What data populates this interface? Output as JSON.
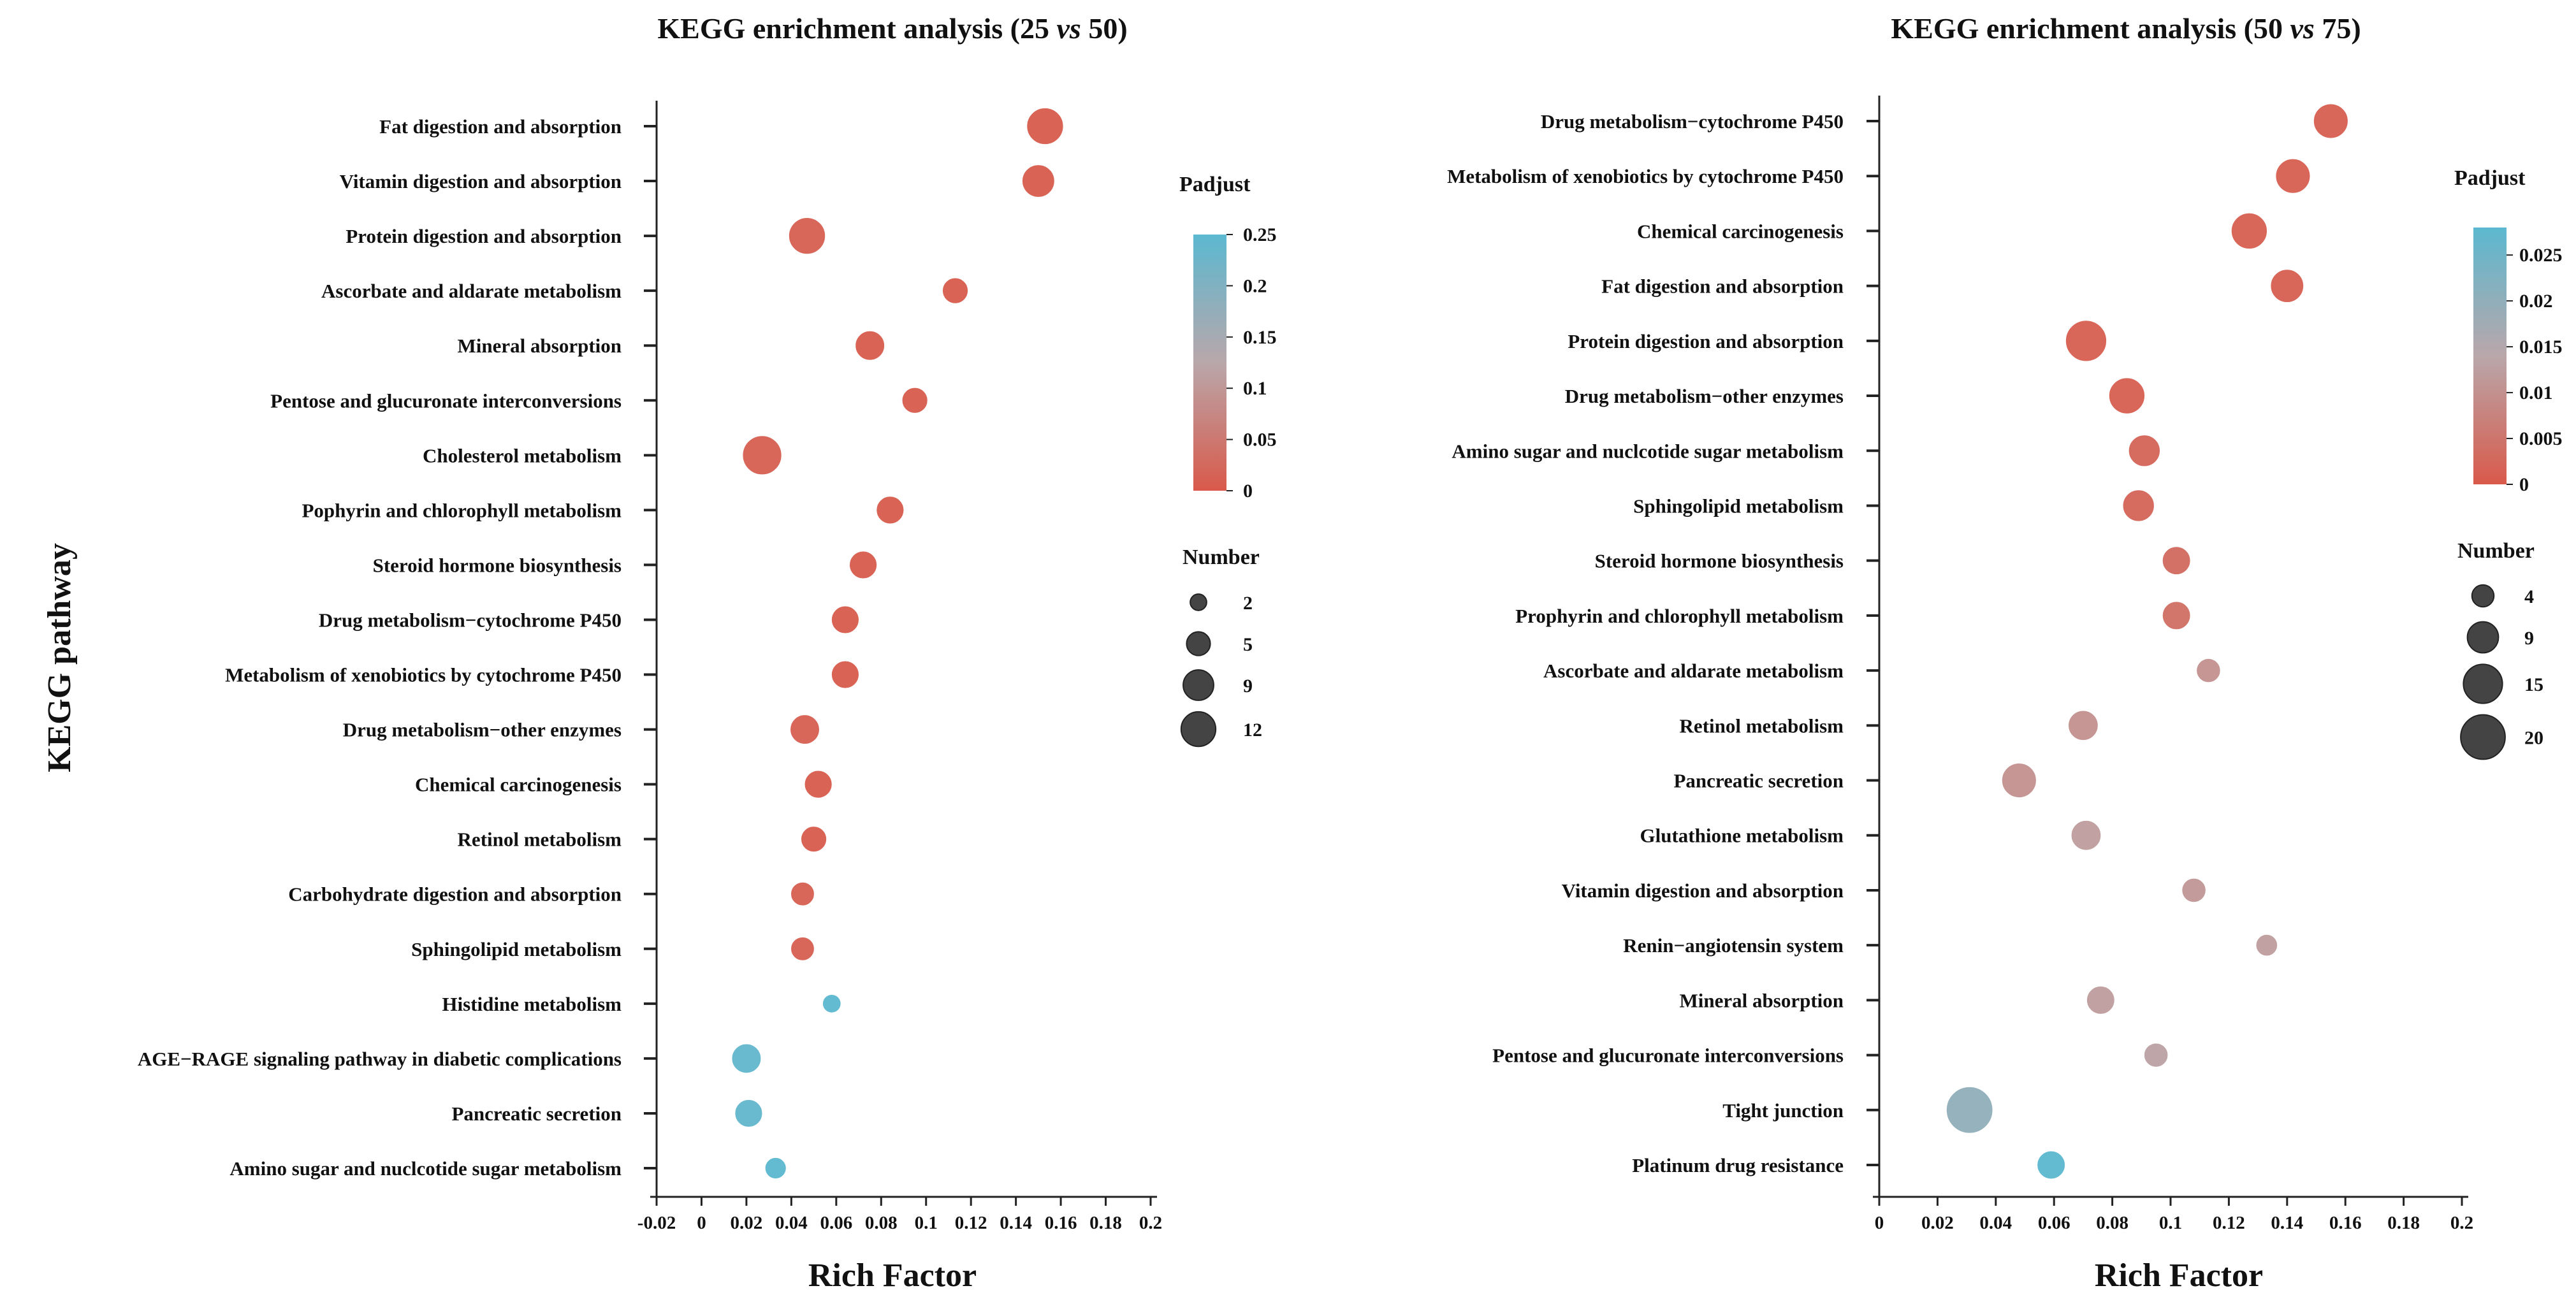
{
  "figure": {
    "ylabel_left": "KEGG pathway"
  },
  "chart_data": [
    {
      "type": "scatter",
      "title": "KEGG enrichment analysis (25 vs 50)",
      "title_parts": [
        "KEGG enrichment analysis (25 ",
        "vs",
        " 50)"
      ],
      "xlabel": "Rich Factor",
      "ylabel": "KEGG pathway",
      "xlim": [
        -0.02,
        0.2
      ],
      "x_ticks": [
        "-0.02",
        "0",
        "0.02",
        "0.04",
        "0.06",
        "0.08",
        "0.1",
        "0.12",
        "0.14",
        "0.16",
        "0.18",
        "0.2"
      ],
      "grid": false,
      "legend_placement": "right",
      "color_legend": {
        "title": "Padjust",
        "min": 0,
        "max": 0.25,
        "ticks": [
          "0.25",
          "0.2",
          "0.15",
          "0.1",
          "0.05",
          "0"
        ],
        "low_color": "#d9594a",
        "high_color": "#5bb8d0"
      },
      "size_legend": {
        "title": "Number",
        "values": [
          2,
          5,
          9,
          12
        ],
        "labels": [
          "2",
          "5",
          "9",
          "12"
        ]
      },
      "categories": [
        "Fat digestion and absorption",
        "Vitamin digestion and absorption",
        "Protein digestion and absorption",
        "Ascorbate and aldarate metabolism",
        "Mineral absorption",
        "Pentose and glucuronate interconversions",
        "Cholesterol metabolism",
        "Pophyrin and chlorophyll metabolism",
        "Steroid hormone biosynthesis",
        "Drug metabolism−cytochrome P450",
        "Metabolism of xenobiotics by cytochrome P450",
        "Drug metabolism−other enzymes",
        "Chemical carcinogenesis",
        "Retinol metabolism",
        "Carbohydrate digestion and absorption",
        "Sphingolipid metabolism",
        "Histidine metabolism",
        "AGE−RAGE signaling pathway in diabetic complications",
        "Pancreatic secretion",
        "Amino sugar and nuclcotide sugar metabolism"
      ],
      "points": [
        {
          "x": 0.153,
          "number": 12,
          "padjust": 0.005
        },
        {
          "x": 0.15,
          "number": 9,
          "padjust": 0.005
        },
        {
          "x": 0.047,
          "number": 12,
          "padjust": 0.01
        },
        {
          "x": 0.113,
          "number": 5,
          "padjust": 0.005
        },
        {
          "x": 0.075,
          "number": 7,
          "padjust": 0.005
        },
        {
          "x": 0.095,
          "number": 5,
          "padjust": 0.005
        },
        {
          "x": 0.027,
          "number": 14,
          "padjust": 0.01
        },
        {
          "x": 0.084,
          "number": 6,
          "padjust": 0.005
        },
        {
          "x": 0.072,
          "number": 6,
          "padjust": 0.005
        },
        {
          "x": 0.064,
          "number": 6,
          "padjust": 0.005
        },
        {
          "x": 0.064,
          "number": 6,
          "padjust": 0.005
        },
        {
          "x": 0.046,
          "number": 7,
          "padjust": 0.01
        },
        {
          "x": 0.052,
          "number": 6,
          "padjust": 0.005
        },
        {
          "x": 0.05,
          "number": 5,
          "padjust": 0.005
        },
        {
          "x": 0.045,
          "number": 4,
          "padjust": 0.01
        },
        {
          "x": 0.045,
          "number": 4,
          "padjust": 0.01
        },
        {
          "x": 0.058,
          "number": 2,
          "padjust": 0.25
        },
        {
          "x": 0.02,
          "number": 7,
          "padjust": 0.24
        },
        {
          "x": 0.021,
          "number": 6,
          "padjust": 0.24
        },
        {
          "x": 0.033,
          "number": 3,
          "padjust": 0.25
        }
      ]
    },
    {
      "type": "scatter",
      "title": "KEGG enrichment analysis (50 vs 75)",
      "title_parts": [
        "KEGG enrichment analysis (50 ",
        "vs",
        " 75)"
      ],
      "xlabel": "Rich Factor",
      "ylabel": "",
      "xlim": [
        0,
        0.2
      ],
      "x_ticks": [
        "0",
        "0.02",
        "0.04",
        "0.06",
        "0.08",
        "0.1",
        "0.12",
        "0.14",
        "0.16",
        "0.18",
        "0.2"
      ],
      "grid": false,
      "legend_placement": "right",
      "color_legend": {
        "title": "Padjust",
        "min": 0,
        "max": 0.028,
        "ticks": [
          "0.025",
          "0.02",
          "0.015",
          "0.01",
          "0.005",
          "0"
        ],
        "tick_values": [
          0.025,
          0.02,
          0.015,
          0.01,
          0.005,
          0
        ],
        "low_color": "#d9594a",
        "high_color": "#5bb8d0"
      },
      "size_legend": {
        "title": "Number",
        "values": [
          4,
          9,
          15,
          20
        ],
        "labels": [
          "4",
          "9",
          "15",
          "20"
        ]
      },
      "categories": [
        "Drug metabolism−cytochrome P450",
        "Metabolism of xenobiotics by cytochrome P450",
        "Chemical carcinogenesis",
        "Fat digestion and absorption",
        "Protein digestion and absorption",
        "Drug metabolism−other enzymes",
        "Amino sugar and nuclcotide sugar metabolism",
        "Sphingolipid metabolism",
        "Steroid hormone biosynthesis",
        "Prophyrin and chlorophyll metabolism",
        "Ascorbate and aldarate metabolism",
        "Retinol metabolism",
        "Pancreatic secretion",
        "Glutathione metabolism",
        "Vitamin digestion and absorption",
        "Renin−angiotensin system",
        "Mineral absorption",
        "Pentose and glucuronate interconversions",
        "Tight junction",
        "Platinum drug resistance"
      ],
      "points": [
        {
          "x": 0.155,
          "number": 10,
          "padjust": 0.001
        },
        {
          "x": 0.142,
          "number": 10,
          "padjust": 0.001
        },
        {
          "x": 0.127,
          "number": 11,
          "padjust": 0.001
        },
        {
          "x": 0.14,
          "number": 9,
          "padjust": 0.001
        },
        {
          "x": 0.071,
          "number": 15,
          "padjust": 0.001
        },
        {
          "x": 0.085,
          "number": 11,
          "padjust": 0.001
        },
        {
          "x": 0.091,
          "number": 8,
          "padjust": 0.002
        },
        {
          "x": 0.089,
          "number": 8,
          "padjust": 0.002
        },
        {
          "x": 0.102,
          "number": 6,
          "padjust": 0.003
        },
        {
          "x": 0.102,
          "number": 6,
          "padjust": 0.004
        },
        {
          "x": 0.113,
          "number": 4,
          "padjust": 0.01
        },
        {
          "x": 0.07,
          "number": 7,
          "padjust": 0.01
        },
        {
          "x": 0.048,
          "number": 10,
          "padjust": 0.01
        },
        {
          "x": 0.071,
          "number": 7,
          "padjust": 0.012
        },
        {
          "x": 0.108,
          "number": 4,
          "padjust": 0.011
        },
        {
          "x": 0.133,
          "number": 3,
          "padjust": 0.012
        },
        {
          "x": 0.076,
          "number": 6,
          "padjust": 0.012
        },
        {
          "x": 0.095,
          "number": 4,
          "padjust": 0.013
        },
        {
          "x": 0.031,
          "number": 20,
          "padjust": 0.02
        },
        {
          "x": 0.059,
          "number": 6,
          "padjust": 0.028
        }
      ]
    }
  ]
}
